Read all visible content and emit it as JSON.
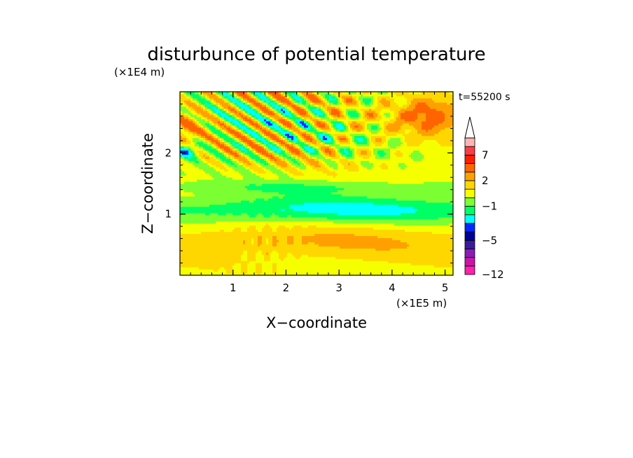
{
  "chart_data": {
    "type": "heatmap",
    "title": "disturbunce of potential temperature",
    "time_label": "t=55200 s",
    "xlabel": "X−coordinate",
    "ylabel": "Z−coordinate",
    "x_unit": "(×1E5 m)",
    "y_unit": "(×1E4 m)",
    "xlim": [
      0,
      5.15
    ],
    "ylim": [
      0,
      3.0
    ],
    "x_ticks": [
      1,
      2,
      3,
      4,
      5
    ],
    "y_ticks": [
      1,
      2
    ],
    "x_tick_labels": [
      "1",
      "2",
      "3",
      "4",
      "5"
    ],
    "y_tick_labels": [
      "1",
      "2"
    ],
    "colorbar": {
      "tick_labels": [
        "7",
        "2",
        "−1",
        "−5",
        "−12"
      ],
      "tick_values": [
        7,
        2,
        -1,
        -5,
        -12
      ],
      "levels": [
        -12,
        -10,
        -8,
        -6,
        -5,
        -4,
        -3,
        -2,
        -1,
        0,
        1,
        2,
        3,
        5,
        7,
        9,
        11
      ],
      "colors": [
        "#ff1fb0",
        "#c815a8",
        "#8c1ab4",
        "#3c1aa0",
        "#000096",
        "#0028ff",
        "#00ffff",
        "#00ff64",
        "#7cff32",
        "#f5ff00",
        "#ffd700",
        "#ffa000",
        "#ff6400",
        "#ff1e00",
        "#ff3c46",
        "#ffb4b4"
      ],
      "extend": "max",
      "extend_color": "#ffffff"
    }
  }
}
